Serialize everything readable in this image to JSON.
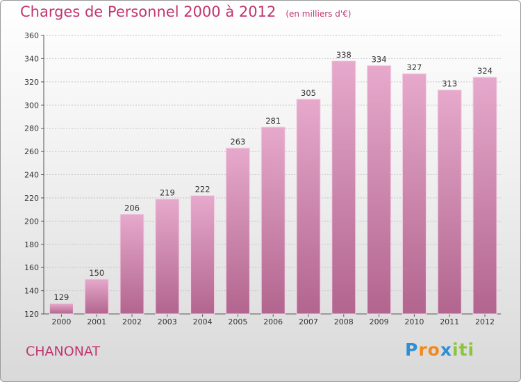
{
  "title": "Charges de Personnel 2000 à 2012",
  "subtitle": "(en milliers d'€)",
  "city": "CHANONAT",
  "logo": {
    "letters": [
      "P",
      "r",
      "o",
      "x",
      "i",
      "t",
      "i"
    ],
    "colors": [
      "#2f8fd6",
      "#f08a1e",
      "#f08a1e",
      "#2f8fd6",
      "#8cc43f",
      "#8cc43f",
      "#8cc43f"
    ]
  },
  "colors": {
    "bar_top": "#e6a9cc",
    "bar_bottom": "#b2658e",
    "title": "#c2356f"
  },
  "chart_data": {
    "type": "bar",
    "title": "Charges de Personnel 2000 à 2012",
    "subtitle": "(en milliers d'€)",
    "categories": [
      "2000",
      "2001",
      "2002",
      "2003",
      "2004",
      "2005",
      "2006",
      "2007",
      "2008",
      "2009",
      "2010",
      "2011",
      "2012"
    ],
    "values": [
      129,
      150,
      206,
      219,
      222,
      263,
      281,
      305,
      338,
      334,
      327,
      313,
      324
    ],
    "ylim": [
      120,
      360
    ],
    "yticks": [
      120,
      140,
      160,
      180,
      200,
      220,
      240,
      260,
      280,
      300,
      320,
      340,
      360
    ],
    "grid": true,
    "xlabel": "",
    "ylabel": ""
  }
}
